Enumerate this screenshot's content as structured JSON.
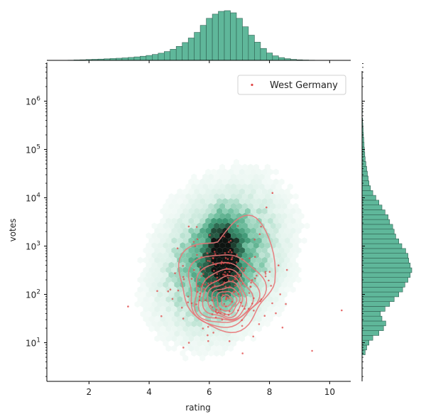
{
  "chart_data": {
    "type": "scatter",
    "title": "",
    "xlabel": "rating",
    "ylabel": "votes",
    "xlim": [
      0.6,
      10.7
    ],
    "ylim_log10": [
      0.2,
      6.8
    ],
    "yscale": "log",
    "xticks": [
      "2",
      "4",
      "6",
      "8",
      "10"
    ],
    "yticks": [
      "10^1",
      "10^2",
      "10^3",
      "10^4",
      "10^5",
      "10^6"
    ],
    "grid": false,
    "legend_position": "top-right",
    "colors": {
      "hex_base": "#4fae8a",
      "hex_dark": "#1d2b24",
      "kde": "#e8787a",
      "points": "#e04848",
      "hist_fill": "#5fb79a",
      "hist_edge": "#2f5f50"
    },
    "series": [
      {
        "name": "West Germany",
        "kind": "scatter+kde",
        "center_rating": 6.5,
        "center_log10_votes": 1.9
      }
    ],
    "background": {
      "kind": "hexbin",
      "center_rating": 6.4,
      "center_log10_votes": 2.7,
      "rating_spread": 1.2,
      "log10_votes_spread": 0.9
    },
    "marginal_x": {
      "kind": "histogram",
      "bin_centers": [
        1.4,
        1.6,
        1.8,
        2.0,
        2.2,
        2.4,
        2.6,
        2.8,
        3.0,
        3.2,
        3.4,
        3.6,
        3.8,
        4.0,
        4.2,
        4.4,
        4.6,
        4.8,
        5.0,
        5.2,
        5.4,
        5.6,
        5.8,
        6.0,
        6.2,
        6.4,
        6.6,
        6.8,
        7.0,
        7.2,
        7.4,
        7.6,
        7.8,
        8.0,
        8.2,
        8.4,
        8.6,
        8.8,
        9.0,
        9.2,
        9.4,
        9.6
      ],
      "counts": [
        0.3,
        0.6,
        0.8,
        1.2,
        1.5,
        1.8,
        2.2,
        2.6,
        3.0,
        3.5,
        4.2,
        5.0,
        5.9,
        7.0,
        8.4,
        10.2,
        12.6,
        15.8,
        20.0,
        25.5,
        32.0,
        40.0,
        50.0,
        60.0,
        66.0,
        70.0,
        71.0,
        68.0,
        60.0,
        48.0,
        36.0,
        26.0,
        17.0,
        10.5,
        6.5,
        4.0,
        2.4,
        1.4,
        0.8,
        0.5,
        0.3,
        0.2
      ]
    },
    "marginal_y": {
      "kind": "histogram",
      "bin_centers_log10": [
        0.8,
        0.9,
        1.0,
        1.1,
        1.2,
        1.3,
        1.4,
        1.5,
        1.6,
        1.7,
        1.8,
        1.9,
        2.0,
        2.1,
        2.2,
        2.3,
        2.4,
        2.5,
        2.6,
        2.7,
        2.8,
        2.9,
        3.0,
        3.1,
        3.2,
        3.3,
        3.4,
        3.5,
        3.6,
        3.7,
        3.8,
        3.9,
        4.0,
        4.1,
        4.2,
        4.3,
        4.4,
        4.5,
        4.6,
        4.7,
        4.8,
        4.9,
        5.0,
        5.1,
        5.2,
        5.3,
        5.4,
        5.5,
        5.6,
        5.8,
        6.0
      ],
      "counts": [
        4,
        6,
        9,
        14,
        22,
        28,
        31,
        26,
        24,
        30,
        36,
        42,
        48,
        53,
        56,
        60,
        63,
        65,
        63,
        61,
        60,
        57,
        52,
        48,
        44,
        42,
        40,
        36,
        34,
        30,
        26,
        22,
        18,
        14,
        11,
        9,
        8,
        7,
        6,
        5,
        4,
        3.5,
        3,
        2.6,
        2.2,
        1.8,
        1.4,
        1.0,
        0.7,
        0.4,
        0.2
      ]
    }
  }
}
